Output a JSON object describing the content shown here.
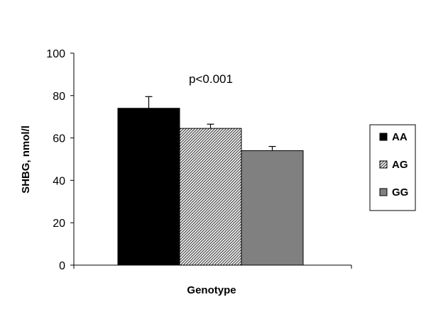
{
  "chart_data": {
    "type": "bar",
    "xlabel": "Genotype",
    "ylabel": "SHBG, nmol/l",
    "ylim": [
      0,
      100
    ],
    "yticks": [
      0,
      20,
      40,
      60,
      80,
      100
    ],
    "grid": false,
    "legend_position": "right",
    "annotation": "p<0.001",
    "series": [
      {
        "name": "AA",
        "values": [
          74
        ],
        "error": [
          5.5
        ],
        "color": "#000000",
        "pattern": "solid"
      },
      {
        "name": "AG",
        "values": [
          64.5
        ],
        "error": [
          2
        ],
        "color": "#bbbbbb",
        "pattern": "hatched"
      },
      {
        "name": "GG",
        "values": [
          54
        ],
        "error": [
          2
        ],
        "color": "#808080",
        "pattern": "solid"
      }
    ]
  }
}
